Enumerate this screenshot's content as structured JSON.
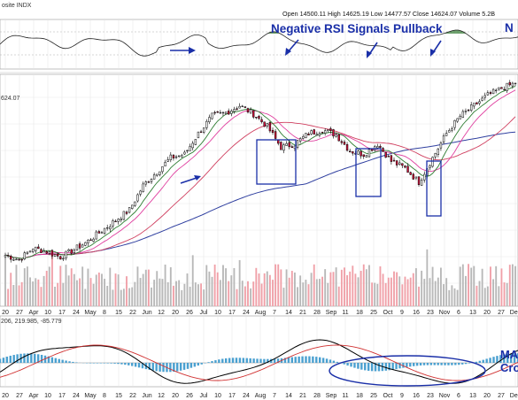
{
  "header": {
    "symbol": "osite INDX",
    "ohlcv": "Open 14500.11  High 14625.19  Low 14477.57  Close 14624.07  Volume 5.2B"
  },
  "price_label": "624.07",
  "macd_label": "206, 219.985, -85.779",
  "annotations": {
    "rsi": "Negative RSI Signals Pullback",
    "right_top": "N",
    "macd_line1": "MA",
    "macd_line2": "Cro"
  },
  "colors": {
    "annotation": "#1a2fa8",
    "up_candle": "#ffffff",
    "down_candle": "#d0103a",
    "sma_short": "#2e7d32",
    "ema_mid": "#e040a0",
    "sma_mid": "#d04060",
    "sma_long": "#3040a0",
    "volume_up": "#b8b8b8",
    "volume_down": "#f0a0a8",
    "macd_line": "#000000",
    "macd_signal": "#d03030",
    "macd_hist": "#4aa0d0",
    "box": "#1a2fa8"
  },
  "chart_data": {
    "type": "candlestick",
    "x_ticks": [
      "20",
      "27",
      "Apr",
      "10",
      "17",
      "24",
      "May",
      "8",
      "15",
      "22",
      "Jun",
      "12",
      "20",
      "26",
      "Jul",
      "10",
      "17",
      "24",
      "Aug",
      "7",
      "14",
      "21",
      "28",
      "Sep",
      "11",
      "18",
      "25",
      "Oct",
      "9",
      "16",
      "23",
      "Nov",
      "6",
      "13",
      "20",
      "27",
      "Dec"
    ],
    "weekly_close": [
      12150,
      12080,
      12250,
      12200,
      12120,
      12230,
      12350,
      12500,
      12650,
      12800,
      13150,
      13350,
      13550,
      13600,
      13900,
      14150,
      14200,
      14300,
      14180,
      14000,
      13700,
      13750,
      13900,
      13950,
      13880,
      13650,
      13600,
      13750,
      13500,
      13400,
      13200,
      13550,
      13900,
      14150,
      14300,
      14450,
      14550,
      14624
    ],
    "price_range": [
      12000,
      14700
    ],
    "boxes": [
      {
        "from": "Aug",
        "to": "21"
      },
      {
        "from": "18",
        "to": "Oct"
      },
      {
        "from": "23",
        "to": "Nov"
      }
    ]
  }
}
